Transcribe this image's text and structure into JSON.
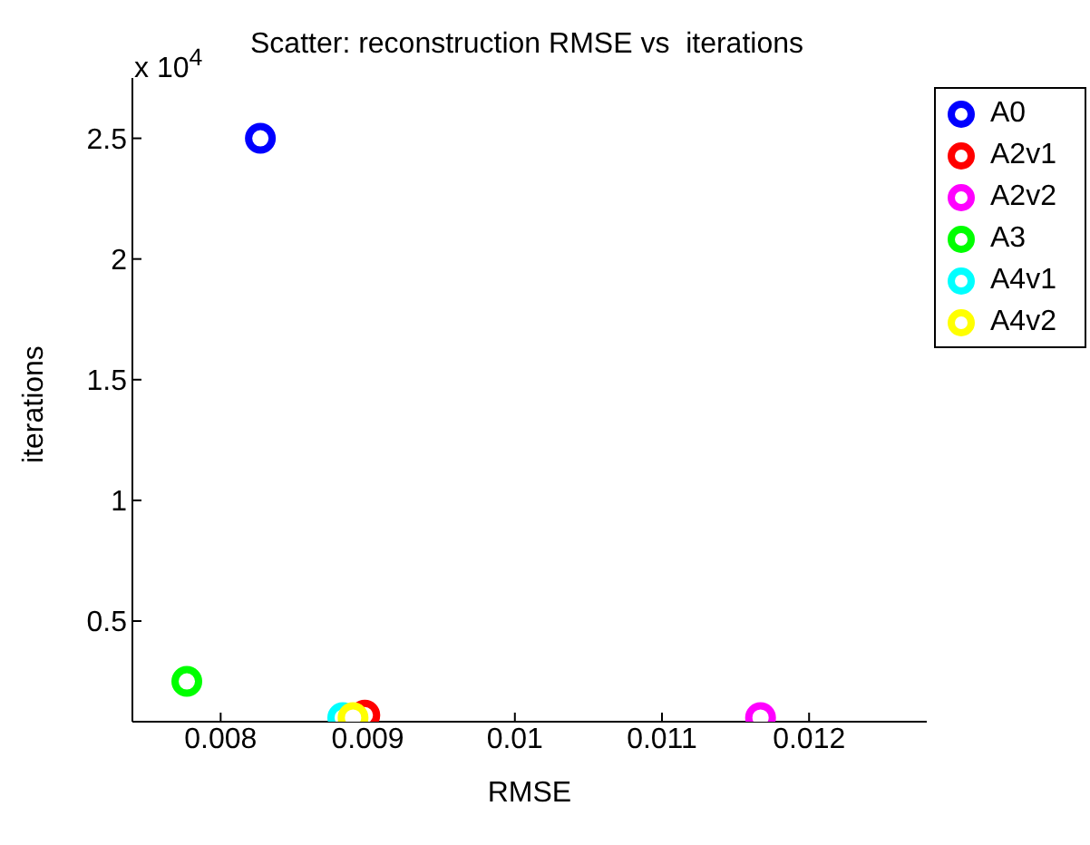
{
  "chart_data": {
    "type": "scatter",
    "title": "Scatter: reconstruction RMSE vs  iterations",
    "xlabel": "RMSE",
    "ylabel": "iterations",
    "annotations": [
      "x 10$^{4}$"
    ],
    "series": [
      {
        "name": "A0",
        "color": "#0000ff",
        "x": [
          0.00827
        ],
        "values": [
          2.5
        ]
      },
      {
        "name": "A2v1",
        "color": "#ff0000",
        "x": [
          0.00898
        ],
        "values": [
          0.11
        ]
      },
      {
        "name": "A2v2",
        "color": "#ff00ff",
        "x": [
          0.01167
        ],
        "values": [
          0.1
        ]
      },
      {
        "name": "A3",
        "color": "#00ff00",
        "x": [
          0.00777
        ],
        "values": [
          0.25
        ]
      },
      {
        "name": "A4v1",
        "color": "#00ffff",
        "x": [
          0.00883
        ],
        "values": [
          0.1
        ]
      },
      {
        "name": "A4v2",
        "color": "#ffff00",
        "x": [
          0.0089
        ],
        "values": [
          0.1
        ]
      }
    ],
    "xlim": [
      0.0074,
      0.0128
    ],
    "xticks": [
      0.008,
      0.009,
      0.01,
      0.011,
      0.012
    ],
    "ylim": [
      0.083,
      2.75
    ],
    "yticks": [
      0.5,
      1,
      1.5,
      2,
      2.5
    ],
    "grid": false,
    "legend": "top right",
    "marker": "circle"
  }
}
